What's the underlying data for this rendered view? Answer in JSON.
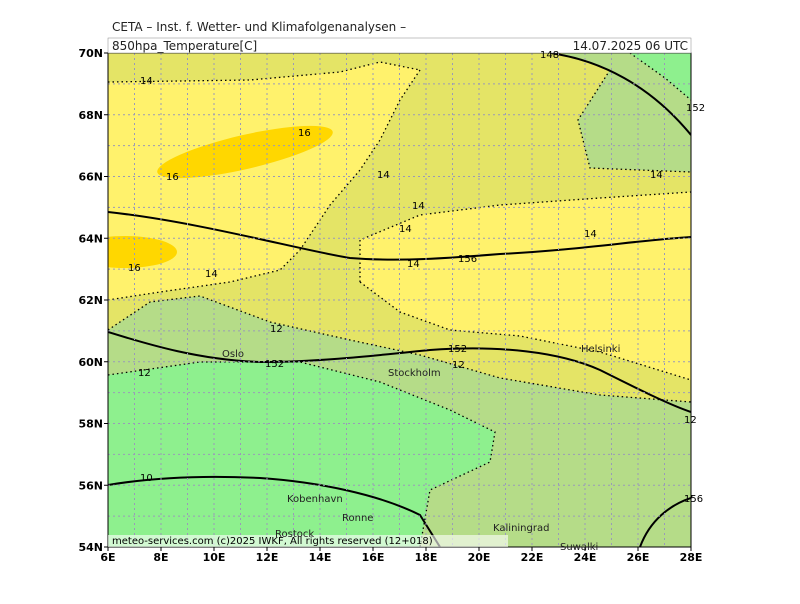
{
  "header": {
    "institute": "CETA – Inst. f. Wetter- und Klimafolgenanalysen –",
    "field": "850hpa_Temperature[C]",
    "time": "14.07.2025 06 UTC"
  },
  "axes": {
    "lat_ticks": [
      "70N",
      "68N",
      "66N",
      "64N",
      "62N",
      "60N",
      "58N",
      "56N",
      "54N"
    ],
    "lon_ticks": [
      "6E",
      "8E",
      "10E",
      "12E",
      "14E",
      "16E",
      "18E",
      "20E",
      "22E",
      "24E",
      "26E",
      "28E"
    ]
  },
  "cities": [
    "Oslo",
    "Stockholm",
    "Helsinki",
    "Kobenhavn",
    "Ronne",
    "Rostock",
    "Kaliningrad",
    "Suwalki"
  ],
  "contour_labels": [
    "14",
    "16",
    "16",
    "14",
    "14",
    "14",
    "14",
    "16",
    "14",
    "14",
    "156",
    "14",
    "12",
    "12",
    "152",
    "152",
    "12",
    "10",
    "148",
    "156",
    "152",
    "12"
  ],
  "footer": "meteo-services.com (c)2025 IWKF, All rights reserved (12+018)"
}
